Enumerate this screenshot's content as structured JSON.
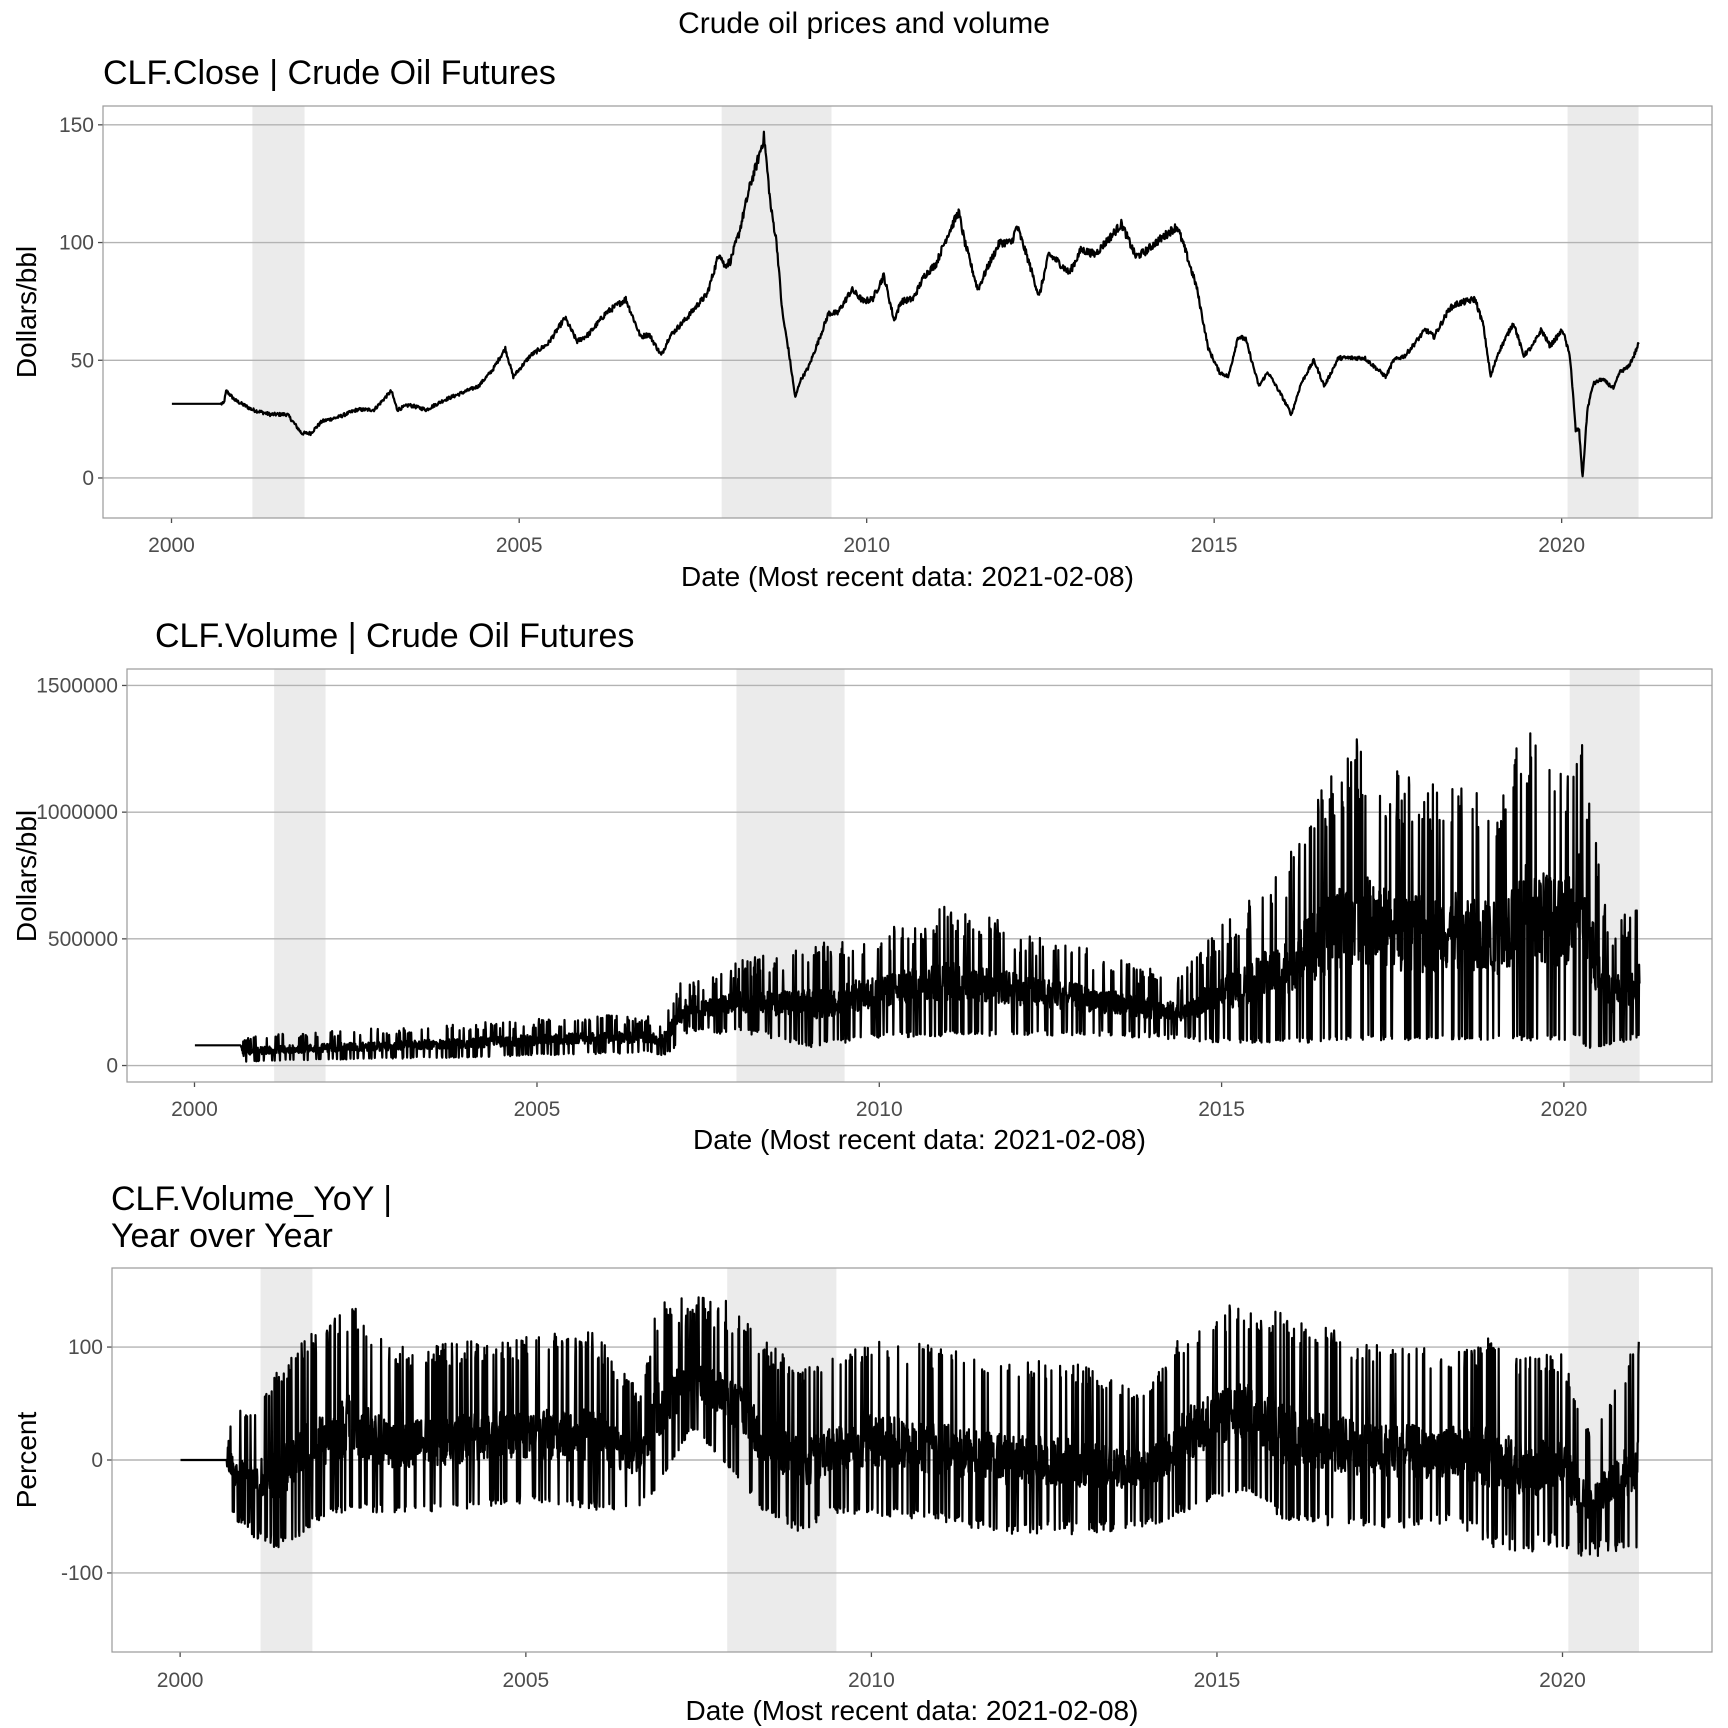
{
  "figure_title": "Crude oil prices and volume",
  "colors": {
    "line": "#000000",
    "recession": "#ebebeb",
    "grid": "#b3b3b3",
    "panel_border": "#9a9a9a"
  },
  "chart_data": [
    {
      "type": "line",
      "title": "CLF.Close | Crude Oil Futures",
      "xlabel": "Date (Most recent data: 2021-02-08)",
      "ylabel": "Dollars/bbl",
      "xlim": [
        "1999-01-06",
        "2022-03-01"
      ],
      "ylim": [
        -17,
        158
      ],
      "x_ticks": [
        "2000",
        "2005",
        "2010",
        "2015",
        "2020"
      ],
      "y_ticks": [
        0,
        50,
        100,
        150
      ],
      "grid": "horizontal",
      "shaded_periods": [
        [
          "2001-03-01",
          "2001-11-30"
        ],
        [
          "2007-12-01",
          "2009-06-30"
        ],
        [
          "2020-02-01",
          "2021-02-08"
        ]
      ],
      "series": [
        {
          "x": [
            "2000-01-03",
            "2000-10-01",
            "2000-10-15",
            "2000-12-01",
            "2001-03-01",
            "2001-06-01",
            "2001-09-01",
            "2001-11-15",
            "2002-01-01",
            "2002-03-01",
            "2002-06-01",
            "2002-09-01",
            "2002-12-01",
            "2003-03-01",
            "2003-04-01",
            "2003-06-01",
            "2003-09-01",
            "2003-12-01",
            "2004-03-01",
            "2004-06-01",
            "2004-08-15",
            "2004-10-20",
            "2004-12-01",
            "2005-03-01",
            "2005-06-01",
            "2005-08-30",
            "2005-11-01",
            "2006-01-01",
            "2006-04-01",
            "2006-07-15",
            "2006-10-01",
            "2006-11-15",
            "2007-01-18",
            "2007-03-01",
            "2007-06-01",
            "2007-08-01",
            "2007-09-15",
            "2007-11-20",
            "2007-12-15",
            "2008-01-15",
            "2008-03-01",
            "2008-05-01",
            "2008-06-01",
            "2008-07-11",
            "2008-08-15",
            "2008-09-15",
            "2008-10-15",
            "2008-11-15",
            "2008-12-22",
            "2009-01-15",
            "2009-03-01",
            "2009-05-01",
            "2009-06-15",
            "2009-08-01",
            "2009-10-15",
            "2009-12-15",
            "2010-02-01",
            "2010-04-01",
            "2010-05-25",
            "2010-07-01",
            "2010-09-01",
            "2010-11-01",
            "2011-01-01",
            "2011-03-01",
            "2011-04-29",
            "2011-06-01",
            "2011-08-08",
            "2011-10-01",
            "2011-12-01",
            "2012-02-01",
            "2012-03-01",
            "2012-05-01",
            "2012-06-25",
            "2012-08-15",
            "2012-10-01",
            "2012-12-01",
            "2013-02-01",
            "2013-04-15",
            "2013-07-01",
            "2013-09-01",
            "2013-11-15",
            "2014-01-01",
            "2014-03-01",
            "2014-06-20",
            "2014-08-01",
            "2014-10-01",
            "2014-12-01",
            "2015-01-28",
            "2015-03-17",
            "2015-05-06",
            "2015-06-15",
            "2015-08-24",
            "2015-10-10",
            "2015-12-21",
            "2016-02-11",
            "2016-04-01",
            "2016-06-08",
            "2016-08-02",
            "2016-10-15",
            "2016-12-15",
            "2017-03-01",
            "2017-06-21",
            "2017-08-01",
            "2017-10-01",
            "2018-01-15",
            "2018-03-01",
            "2018-05-22",
            "2018-07-01",
            "2018-10-03",
            "2018-11-15",
            "2018-12-24",
            "2019-02-01",
            "2019-04-23",
            "2019-06-15",
            "2019-08-01",
            "2019-09-16",
            "2019-11-01",
            "2020-01-06",
            "2020-02-15",
            "2020-03-15",
            "2020-04-01",
            "2020-04-20",
            "2020-05-15",
            "2020-06-15",
            "2020-08-01",
            "2020-10-01",
            "2020-11-01",
            "2020-12-15",
            "2021-01-15",
            "2021-02-08"
          ],
          "values": [
            31.5,
            31.5,
            37,
            33,
            29,
            27,
            27,
            19,
            19,
            24,
            26,
            29,
            29,
            37,
            29,
            31,
            29,
            33,
            36,
            39,
            46,
            55,
            43,
            52,
            57,
            68,
            58,
            61,
            70,
            76,
            60,
            61,
            52,
            60,
            68,
            74,
            78,
            96,
            90,
            92,
            104,
            125,
            133,
            145,
            115,
            100,
            70,
            55,
            34,
            41,
            47,
            60,
            70,
            70,
            80,
            75,
            76,
            86,
            67,
            75,
            76,
            86,
            91,
            103,
            113,
            100,
            80,
            90,
            100,
            100,
            107,
            92,
            77,
            95,
            92,
            87,
            97,
            95,
            102,
            108,
            94,
            96,
            100,
            107,
            97,
            81,
            55,
            45,
            43,
            60,
            59,
            39,
            45,
            35,
            27,
            40,
            50,
            39,
            51,
            51,
            51,
            43,
            50,
            52,
            63,
            60,
            72,
            74,
            76,
            65,
            43,
            53,
            66,
            52,
            56,
            63,
            56,
            63,
            51,
            20,
            21,
            0,
            29,
            40,
            42,
            38,
            45,
            47,
            52,
            57
          ]
        }
      ]
    },
    {
      "type": "line",
      "title": "CLF.Volume | Crude Oil Futures",
      "xlabel": "Date (Most recent data: 2021-02-08)",
      "ylabel": "Dollars/bbl",
      "xlim": [
        "1999-01-06",
        "2022-03-01"
      ],
      "ylim": [
        -65000,
        1565000
      ],
      "x_ticks": [
        "2000",
        "2005",
        "2010",
        "2015",
        "2020"
      ],
      "y_ticks": [
        0,
        500000,
        1000000,
        1500000
      ],
      "grid": "horizontal",
      "shaded_periods": [
        [
          "2001-03-01",
          "2001-11-30"
        ],
        [
          "2007-12-01",
          "2009-06-30"
        ],
        [
          "2020-02-01",
          "2021-02-08"
        ]
      ],
      "series": [
        {
          "x": [
            "2000-01-03",
            "2000-09-01",
            "2000-10-01",
            "2001-01-01",
            "2002-01-01",
            "2003-01-01",
            "2004-01-01",
            "2005-01-01",
            "2006-01-01",
            "2006-09-01",
            "2006-11-01",
            "2007-01-15",
            "2007-03-01",
            "2008-01-01",
            "2008-06-01",
            "2009-01-01",
            "2010-01-01",
            "2011-01-01",
            "2012-01-01",
            "2013-01-01",
            "2014-01-01",
            "2014-06-01",
            "2015-01-01",
            "2016-01-01",
            "2016-06-01",
            "2017-01-01",
            "2017-06-01",
            "2018-01-01",
            "2018-06-01",
            "2019-01-01",
            "2019-06-01",
            "2020-01-01",
            "2020-03-20",
            "2020-05-01",
            "2020-09-01",
            "2021-02-08"
          ],
          "low": [
            80000,
            80000,
            15000,
            20000,
            25000,
            30000,
            35000,
            45000,
            50000,
            55000,
            40000,
            80000,
            140000,
            140000,
            120000,
            80000,
            120000,
            130000,
            130000,
            130000,
            120000,
            110000,
            100000,
            100000,
            100000,
            110000,
            110000,
            110000,
            110000,
            110000,
            110000,
            110000,
            130000,
            70000,
            90000,
            120000
          ],
          "high": [
            80000,
            80000,
            110000,
            120000,
            140000,
            150000,
            170000,
            185000,
            200000,
            195000,
            185000,
            330000,
            320000,
            420000,
            440000,
            480000,
            550000,
            640000,
            560000,
            470000,
            380000,
            360000,
            560000,
            840000,
            1070000,
            1310000,
            1180000,
            1120000,
            1160000,
            1080000,
            1390000,
            1220000,
            1440000,
            1180000,
            560000,
            640000
          ]
        }
      ]
    },
    {
      "type": "line",
      "title": "CLF.Volume_YoY |",
      "subtitle": "Year over Year",
      "xlabel": "Date (Most recent data: 2021-02-08)",
      "ylabel": "Percent",
      "xlim": [
        "1999-01-06",
        "2022-03-01"
      ],
      "ylim": [
        -170,
        170
      ],
      "x_ticks": [
        "2000",
        "2005",
        "2010",
        "2015",
        "2020"
      ],
      "y_ticks": [
        -100,
        0,
        100
      ],
      "grid": "horizontal",
      "shaded_periods": [
        [
          "2001-03-01",
          "2001-11-30"
        ],
        [
          "2007-12-01",
          "2009-06-30"
        ],
        [
          "2020-02-01",
          "2021-02-08"
        ]
      ],
      "series": [
        {
          "x": [
            "2000-01-03",
            "2000-09-01",
            "2000-10-01",
            "2001-01-01",
            "2001-06-01",
            "2002-01-01",
            "2002-07-01",
            "2003-01-01",
            "2004-01-01",
            "2005-01-01",
            "2006-01-01",
            "2006-09-01",
            "2006-11-15",
            "2007-06-01",
            "2008-01-01",
            "2008-06-01",
            "2009-01-01",
            "2009-06-01",
            "2010-01-01",
            "2011-01-01",
            "2012-01-01",
            "2013-01-01",
            "2014-01-01",
            "2014-06-01",
            "2015-01-01",
            "2015-06-01",
            "2016-01-01",
            "2017-01-01",
            "2018-01-01",
            "2018-06-01",
            "2019-01-01",
            "2019-06-01",
            "2020-01-01",
            "2020-03-01",
            "2020-06-01",
            "2021-02-08"
          ],
          "low": [
            0,
            0,
            -45,
            -60,
            -75,
            -50,
            -40,
            -45,
            -40,
            -35,
            -40,
            -40,
            -25,
            30,
            -10,
            -40,
            -60,
            -45,
            -45,
            -50,
            -60,
            -60,
            -55,
            -45,
            -30,
            -25,
            -50,
            -55,
            -55,
            -50,
            -70,
            -75,
            -70,
            -80,
            -80,
            -70
          ],
          "high": [
            0,
            0,
            50,
            40,
            80,
            120,
            140,
            100,
            105,
            110,
            115,
            60,
            140,
            145,
            140,
            110,
            80,
            90,
            110,
            100,
            90,
            85,
            60,
            110,
            140,
            145,
            130,
            110,
            100,
            95,
            110,
            90,
            95,
            65,
            20,
            110
          ]
        }
      ]
    }
  ]
}
